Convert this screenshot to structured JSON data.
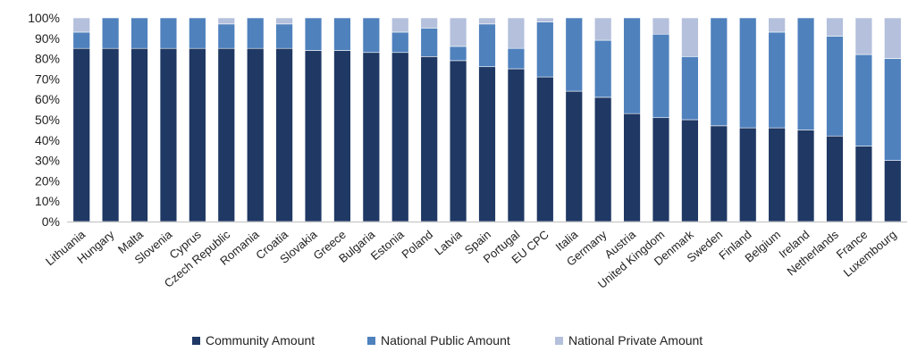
{
  "chart_data": {
    "type": "bar",
    "stacked": true,
    "title": "",
    "xlabel": "",
    "ylabel": "",
    "ylim": [
      0,
      100
    ],
    "y_ticks": [
      "0%",
      "10%",
      "20%",
      "30%",
      "40%",
      "50%",
      "60%",
      "70%",
      "80%",
      "90%",
      "100%"
    ],
    "grid": false,
    "legend_position": "bottom",
    "categories": [
      "Lithuania",
      "Hungary",
      "Malta",
      "Slovenia",
      "Cyprus",
      "Czech Republic",
      "Romania",
      "Croatia",
      "Slovakia",
      "Greece",
      "Bulgaria",
      "Estonia",
      "Poland",
      "Latvia",
      "Spain",
      "Portugal",
      "EU CPC",
      "Italia",
      "Germany",
      "Austria",
      "United Kingdom",
      "Denmark",
      "Sweden",
      "Finland",
      "Belgium",
      "Ireland",
      "Netherlands",
      "France",
      "Luxembourg"
    ],
    "series": [
      {
        "name": "Community Amount",
        "color": "#1f3864",
        "values": [
          85,
          85,
          85,
          85,
          85,
          85,
          85,
          85,
          84,
          84,
          83,
          83,
          81,
          79,
          76,
          75,
          71,
          64,
          61,
          53,
          51,
          50,
          47,
          46,
          46,
          45,
          42,
          37,
          30
        ]
      },
      {
        "name": "National Public Amount",
        "color": "#4f81bd",
        "values": [
          8,
          15,
          15,
          15,
          15,
          12,
          15,
          12,
          16,
          16,
          17,
          10,
          14,
          7,
          21,
          10,
          27,
          36,
          28,
          47,
          41,
          31,
          53,
          54,
          47,
          55,
          49,
          45,
          50
        ]
      },
      {
        "name": "National Private Amount",
        "color": "#b4c0dc",
        "values": [
          7,
          0,
          0,
          0,
          0,
          3,
          0,
          3,
          0,
          0,
          0,
          7,
          5,
          14,
          3,
          15,
          2,
          0,
          11,
          0,
          8,
          19,
          0,
          0,
          7,
          0,
          9,
          18,
          20
        ]
      }
    ]
  }
}
